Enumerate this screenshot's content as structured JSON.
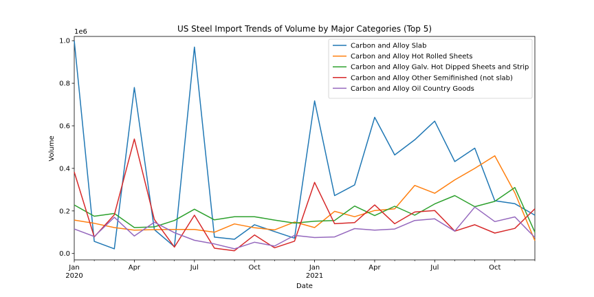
{
  "chart_data": {
    "type": "line",
    "title": "US Steel Import Trends of Volume by Major Categories (Top 5)",
    "xlabel": "Date",
    "ylabel": "Volume",
    "y_offset_text": "1e6",
    "ylim": [
      -30000,
      1020000
    ],
    "grid": false,
    "legend_position": "top-right",
    "x": [
      "2020-01",
      "2020-02",
      "2020-03",
      "2020-04",
      "2020-05",
      "2020-06",
      "2020-07",
      "2020-08",
      "2020-09",
      "2020-10",
      "2020-11",
      "2020-12",
      "2021-01",
      "2021-02",
      "2021-03",
      "2021-04",
      "2021-05",
      "2021-06",
      "2021-07",
      "2021-08",
      "2021-09",
      "2021-10",
      "2021-11",
      "2021-12"
    ],
    "x_ticks": [
      {
        "x": "2020-01",
        "label": "Jan",
        "sublabel": "2020"
      },
      {
        "x": "2020-04",
        "label": "Apr",
        "sublabel": ""
      },
      {
        "x": "2020-07",
        "label": "Jul",
        "sublabel": ""
      },
      {
        "x": "2020-10",
        "label": "Oct",
        "sublabel": ""
      },
      {
        "x": "2021-01",
        "label": "Jan",
        "sublabel": "2021"
      },
      {
        "x": "2021-04",
        "label": "Apr",
        "sublabel": ""
      },
      {
        "x": "2021-07",
        "label": "Jul",
        "sublabel": ""
      },
      {
        "x": "2021-10",
        "label": "Oct",
        "sublabel": ""
      }
    ],
    "y_ticks": [
      {
        "value": 0,
        "label": "0.0"
      },
      {
        "value": 200000,
        "label": "0.2"
      },
      {
        "value": 400000,
        "label": "0.4"
      },
      {
        "value": 600000,
        "label": "0.6"
      },
      {
        "value": 800000,
        "label": "0.8"
      },
      {
        "value": 1000000,
        "label": "1.0"
      }
    ],
    "series": [
      {
        "name": "Carbon and Alloy Slab",
        "color": "#1f77b4",
        "values": [
          1000000,
          57000,
          22000,
          780000,
          112000,
          32000,
          970000,
          77000,
          67000,
          135000,
          103000,
          72000,
          717000,
          272000,
          322000,
          640000,
          463000,
          534000,
          622000,
          432000,
          495000,
          248000,
          234000,
          180000
        ]
      },
      {
        "name": "Carbon and Alloy Hot Rolled Sheets",
        "color": "#ff7f0e",
        "values": [
          157000,
          142000,
          122000,
          110000,
          112000,
          113000,
          113000,
          100000,
          139000,
          121000,
          111000,
          148000,
          122000,
          198000,
          173000,
          202000,
          210000,
          320000,
          283000,
          346000,
          400000,
          459000,
          285000,
          60000
        ]
      },
      {
        "name": "Carbon and Alloy Galv. Hot Dipped Sheets and Strip",
        "color": "#2ca02c",
        "values": [
          228000,
          175000,
          188000,
          122000,
          125000,
          155000,
          208000,
          158000,
          173000,
          173000,
          157000,
          143000,
          152000,
          155000,
          223000,
          178000,
          222000,
          180000,
          233000,
          272000,
          220000,
          245000,
          310000,
          100000
        ]
      },
      {
        "name": "Carbon and Alloy Other Semifinished (not slab)",
        "color": "#d62728",
        "values": [
          383000,
          78000,
          182000,
          538000,
          160000,
          30000,
          180000,
          25000,
          13000,
          87000,
          27000,
          58000,
          334000,
          140000,
          145000,
          228000,
          140000,
          195000,
          202000,
          105000,
          135000,
          96000,
          118000,
          210000
        ]
      },
      {
        "name": "Carbon and Alloy Oil Country Goods",
        "color": "#9467bd",
        "values": [
          115000,
          80000,
          170000,
          82000,
          147000,
          98000,
          62000,
          45000,
          22000,
          53000,
          35000,
          85000,
          75000,
          78000,
          117000,
          110000,
          115000,
          155000,
          163000,
          105000,
          218000,
          150000,
          172000,
          75000
        ]
      }
    ]
  }
}
